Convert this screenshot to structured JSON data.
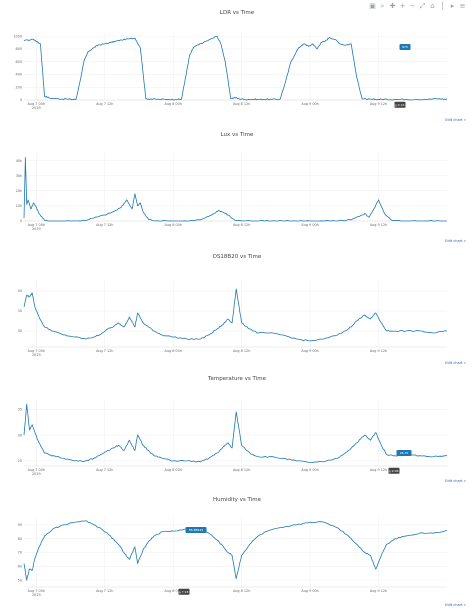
{
  "modebar": {
    "icons": [
      "camera-icon",
      "zoom-icon",
      "pan-icon",
      "zoom-in-icon",
      "zoom-out-icon",
      "autoscale-icon",
      "reset-axes-icon",
      "spike-lines-icon",
      "hover-closest-icon",
      "hover-compare-icon"
    ]
  },
  "edit_chart_label": "Edit chart »",
  "colors": {
    "line": "#1f77b4",
    "grid": "#eeeeee",
    "hover_dark": "#444444"
  },
  "chart_data": [
    {
      "type": "line",
      "title": "LDR vs Time",
      "xlabel": "",
      "ylabel": "",
      "x_ticks": [
        "Aug 7 00h\n2019",
        "Aug 7 12h",
        "Aug 8 00h",
        "Aug 8 12h",
        "Aug 9 00h",
        "Aug 9 12h"
      ],
      "y_ticks": [
        "0",
        "200",
        "400",
        "600",
        "800",
        "1000"
      ],
      "ylim": [
        0,
        1050
      ],
      "xlim": [
        -0.09,
        3.0
      ],
      "series": [
        {
          "x": [
            -0.09,
            -0.02,
            0.0,
            0.03,
            0.06,
            0.1,
            0.16,
            0.22,
            0.26,
            0.29,
            0.32,
            0.35,
            0.38,
            0.42,
            0.45,
            0.5,
            0.54,
            0.58,
            0.62,
            0.68,
            0.72,
            0.76,
            0.8,
            0.84,
            0.9,
            0.96,
            1.02,
            1.06,
            1.09,
            1.12,
            1.15,
            1.19,
            1.22,
            1.27,
            1.32,
            1.35,
            1.38,
            1.42,
            1.45,
            1.48,
            1.52,
            1.58,
            1.62,
            1.66,
            1.72,
            1.78,
            1.82,
            1.86,
            1.91,
            1.94,
            1.96,
            1.99,
            2.02,
            2.05,
            2.08,
            2.11,
            2.14,
            2.18,
            2.22,
            2.26,
            2.3,
            2.34,
            2.38,
            2.42,
            2.45,
            2.48,
            2.52,
            2.56,
            2.62,
            2.7,
            2.78,
            2.86,
            2.93,
            2.97,
            3.0
          ],
          "y": [
            930,
            950,
            920,
            880,
            60,
            30,
            20,
            15,
            10,
            10,
            300,
            620,
            760,
            820,
            860,
            880,
            900,
            920,
            940,
            960,
            970,
            820,
            20,
            15,
            10,
            10,
            10,
            10,
            350,
            700,
            830,
            870,
            900,
            950,
            1000,
            870,
            600,
            20,
            40,
            20,
            10,
            10,
            10,
            10,
            10,
            10,
            280,
            600,
            800,
            860,
            880,
            840,
            880,
            800,
            900,
            920,
            980,
            950,
            880,
            860,
            880,
            360,
            20,
            10,
            10,
            10,
            10,
            10,
            10,
            10,
            10,
            10,
            20,
            15,
            10
          ]
        }
      ],
      "hover_label_value": "875",
      "hover_x_label": "Aug 9 12:57"
    },
    {
      "type": "line",
      "title": "Lux vs Time",
      "xlabel": "",
      "ylabel": "",
      "x_ticks": [
        "Aug 7 00h\n2019",
        "Aug 7 12h",
        "Aug 8 00h",
        "Aug 8 12h",
        "Aug 9 00h",
        "Aug 9 12h"
      ],
      "y_ticks": [
        "0",
        "10k",
        "20k",
        "30k",
        "40k"
      ],
      "ylim": [
        0,
        45000
      ],
      "xlim": [
        -0.09,
        3.0
      ],
      "series": [
        {
          "x": [
            -0.09,
            -0.08,
            -0.07,
            -0.06,
            -0.04,
            -0.02,
            0.0,
            0.02,
            0.06,
            0.1,
            0.2,
            0.3,
            0.35,
            0.42,
            0.5,
            0.56,
            0.62,
            0.66,
            0.7,
            0.72,
            0.74,
            0.76,
            0.78,
            0.82,
            0.9,
            1.0,
            1.1,
            1.2,
            1.26,
            1.3,
            1.33,
            1.36,
            1.4,
            1.45,
            1.6,
            1.7,
            1.8,
            1.9,
            2.0,
            2.1,
            2.2,
            2.3,
            2.36,
            2.4,
            2.43,
            2.46,
            2.5,
            2.55,
            2.6,
            2.7,
            2.8,
            2.9,
            3.0
          ],
          "y": [
            2000,
            42000,
            11000,
            14000,
            8000,
            12000,
            9000,
            5000,
            400,
            0,
            0,
            0,
            300,
            2000,
            4000,
            6000,
            9000,
            14000,
            8000,
            18000,
            10000,
            12000,
            6000,
            1000,
            0,
            0,
            0,
            800,
            3000,
            5000,
            7000,
            6000,
            4000,
            500,
            0,
            0,
            0,
            0,
            0,
            0,
            0,
            800,
            3000,
            5000,
            2500,
            7000,
            14000,
            4000,
            200,
            0,
            0,
            0,
            0
          ]
        }
      ]
    },
    {
      "type": "line",
      "title": "DS18B20 vs Time",
      "xlabel": "",
      "ylabel": "",
      "x_ticks": [
        "Aug 7 00h\n2019",
        "Aug 7 12h",
        "Aug 8 00h",
        "Aug 8 12h",
        "Aug 9 00h",
        "Aug 9 12h"
      ],
      "y_ticks": [
        "30",
        "35",
        "40"
      ],
      "ylim": [
        26,
        43
      ],
      "xlim": [
        -0.09,
        3.0
      ],
      "series": [
        {
          "x": [
            -0.09,
            -0.07,
            -0.05,
            -0.03,
            -0.01,
            0.02,
            0.06,
            0.12,
            0.2,
            0.28,
            0.36,
            0.42,
            0.46,
            0.52,
            0.56,
            0.6,
            0.64,
            0.68,
            0.72,
            0.74,
            0.78,
            0.82,
            0.86,
            0.92,
            1.0,
            1.1,
            1.2,
            1.26,
            1.32,
            1.36,
            1.4,
            1.43,
            1.46,
            1.5,
            1.56,
            1.62,
            1.7,
            1.8,
            1.9,
            2.0,
            2.1,
            2.2,
            2.28,
            2.34,
            2.4,
            2.44,
            2.48,
            2.52,
            2.56,
            2.62,
            2.7,
            2.8,
            2.9,
            3.0
          ],
          "y": [
            36,
            39,
            38.5,
            39.5,
            36,
            33.5,
            31,
            30,
            29,
            28.5,
            28,
            28.5,
            29,
            30.5,
            31,
            32,
            31,
            33.5,
            31,
            34.5,
            32,
            31,
            30,
            29,
            28.5,
            28,
            28,
            29,
            30.5,
            31.5,
            33,
            32,
            40.5,
            32,
            30.5,
            29.5,
            29.5,
            29,
            28,
            27.5,
            28,
            29,
            30.5,
            32.5,
            34,
            33,
            34.5,
            32,
            30,
            30,
            30,
            30,
            29.5,
            30
          ]
        }
      ]
    },
    {
      "type": "line",
      "title": "Temperature vs Time",
      "xlabel": "",
      "ylabel": "",
      "x_ticks": [
        "Aug 7 00h\n2019",
        "Aug 7 12h",
        "Aug 8 00h",
        "Aug 8 12h",
        "Aug 9 00h",
        "Aug 9 12h"
      ],
      "y_ticks": [
        "25",
        "30",
        "35"
      ],
      "ylim": [
        24,
        37
      ],
      "xlim": [
        -0.09,
        3.0
      ],
      "series": [
        {
          "x": [
            -0.09,
            -0.07,
            -0.05,
            -0.03,
            -0.01,
            0.02,
            0.06,
            0.12,
            0.2,
            0.28,
            0.36,
            0.42,
            0.46,
            0.52,
            0.56,
            0.6,
            0.64,
            0.68,
            0.72,
            0.74,
            0.78,
            0.82,
            0.86,
            0.92,
            1.0,
            1.1,
            1.2,
            1.26,
            1.32,
            1.36,
            1.4,
            1.43,
            1.46,
            1.5,
            1.56,
            1.62,
            1.7,
            1.8,
            1.9,
            2.0,
            2.1,
            2.2,
            2.28,
            2.34,
            2.4,
            2.44,
            2.48,
            2.52,
            2.56,
            2.62,
            2.7,
            2.8,
            2.9,
            3.0
          ],
          "y": [
            30,
            36,
            31,
            32,
            30.5,
            28.5,
            26.5,
            26,
            25.5,
            25,
            25,
            25.5,
            26,
            27,
            27.5,
            28,
            27,
            29,
            27,
            30,
            28,
            27,
            26,
            25.5,
            25,
            25,
            24.8,
            25.5,
            26.5,
            27.5,
            28.5,
            27.5,
            34.5,
            28,
            26.5,
            25.8,
            25.8,
            25.5,
            25,
            24.7,
            24.8,
            25.5,
            27,
            28.5,
            30,
            29,
            30.5,
            28,
            26.2,
            26,
            26.2,
            26,
            25.8,
            26
          ]
        }
      ],
      "hover_label_value": "26.70",
      "hover_x_label": "Aug 9 08:10"
    },
    {
      "type": "line",
      "title": "Humidity vs Time",
      "xlabel": "",
      "ylabel": "",
      "x_ticks": [
        "Aug 7 00h\n2019",
        "Aug 7 12h",
        "Aug 8 00h",
        "Aug 8 12h",
        "Aug 9 00h",
        "Aug 9 12h"
      ],
      "y_ticks": [
        "50",
        "60",
        "70",
        "80",
        "90"
      ],
      "ylim": [
        45,
        95
      ],
      "xlim": [
        -0.09,
        3.0
      ],
      "series": [
        {
          "x": [
            -0.09,
            -0.07,
            -0.05,
            -0.03,
            -0.01,
            0.02,
            0.06,
            0.12,
            0.2,
            0.28,
            0.36,
            0.42,
            0.46,
            0.52,
            0.56,
            0.6,
            0.64,
            0.68,
            0.72,
            0.74,
            0.78,
            0.82,
            0.86,
            0.92,
            1.0,
            1.1,
            1.2,
            1.26,
            1.32,
            1.36,
            1.4,
            1.43,
            1.46,
            1.5,
            1.56,
            1.62,
            1.7,
            1.8,
            1.9,
            2.0,
            2.1,
            2.2,
            2.28,
            2.34,
            2.4,
            2.44,
            2.48,
            2.52,
            2.56,
            2.62,
            2.7,
            2.8,
            2.9,
            3.0
          ],
          "y": [
            62,
            50,
            58,
            57,
            66,
            74,
            82,
            87,
            90,
            92,
            93,
            90,
            88,
            84,
            80,
            76,
            70,
            65,
            74,
            62,
            72,
            78,
            82,
            85,
            85.5,
            87,
            88,
            84,
            79,
            75,
            70,
            68,
            51,
            68,
            76,
            82,
            86,
            88,
            90,
            92,
            92,
            88,
            82,
            76,
            70,
            68,
            58,
            68,
            76,
            80,
            82,
            84,
            84,
            86
          ]
        }
      ],
      "hover_label_value": "85.88929",
      "hover_x_label": "Aug 7 23:50"
    }
  ]
}
